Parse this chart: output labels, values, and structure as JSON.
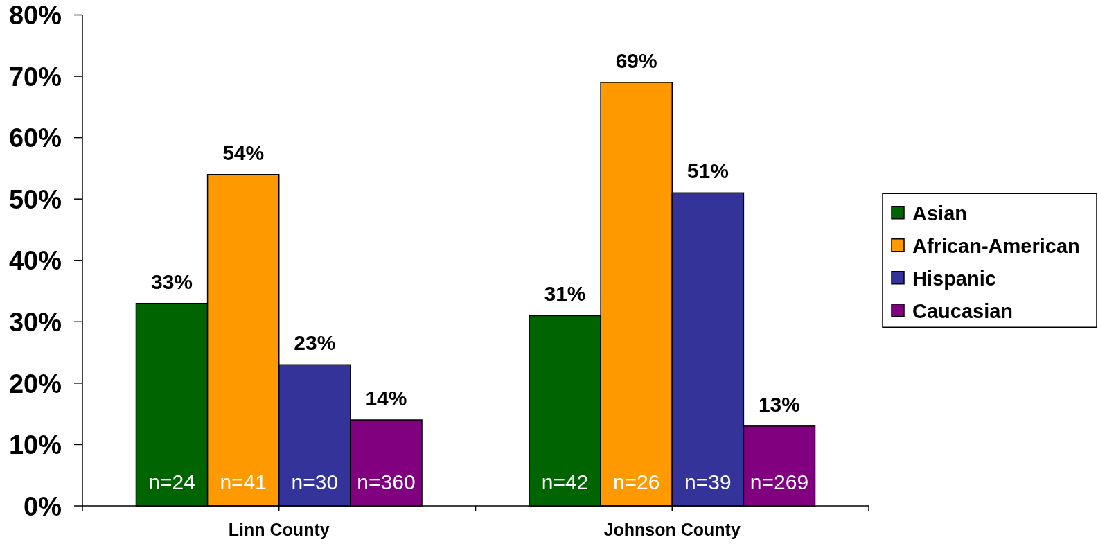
{
  "chart_data": {
    "type": "bar",
    "categories": [
      "Linn County",
      "Johnson County"
    ],
    "series": [
      {
        "name": "Asian",
        "color": "#006400",
        "values": [
          33,
          31
        ],
        "value_labels": [
          "33%",
          "31%"
        ]
      },
      {
        "name": "African-American",
        "color": "#ff9900",
        "values": [
          54,
          69
        ],
        "value_labels": [
          "54%",
          "69%"
        ]
      },
      {
        "name": "Hispanic",
        "color": "#333399",
        "values": [
          23,
          51
        ],
        "value_labels": [
          "23%",
          "51%"
        ]
      },
      {
        "name": "Caucasian",
        "color": "#800080",
        "values": [
          14,
          13
        ],
        "value_labels": [
          "14%",
          "13%"
        ]
      }
    ],
    "ylim": [
      0,
      80
    ],
    "yticks": [
      {
        "value": 0,
        "label": "0%"
      },
      {
        "value": 10,
        "label": "10%"
      },
      {
        "value": 20,
        "label": "20%"
      },
      {
        "value": 30,
        "label": "30%"
      },
      {
        "value": 40,
        "label": "40%"
      },
      {
        "value": 50,
        "label": "50%"
      },
      {
        "value": 60,
        "label": "60%"
      },
      {
        "value": 70,
        "label": "70%"
      },
      {
        "value": 80,
        "label": "80%"
      }
    ],
    "legend": "right",
    "annotations": [
      "n=24",
      "n=41",
      "n=30",
      "n=360",
      "n=42",
      "n=26",
      "n=39",
      "n=269"
    ]
  }
}
